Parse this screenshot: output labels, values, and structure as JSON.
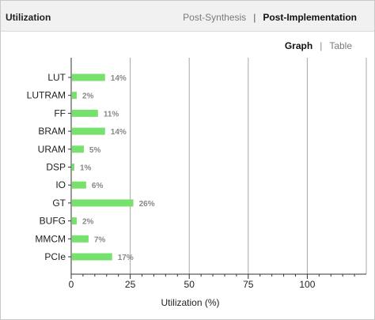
{
  "panel": {
    "title": "Utilization",
    "tabs": [
      {
        "label": "Post-Synthesis",
        "active": false
      },
      {
        "label": "Post-Implementation",
        "active": true
      }
    ],
    "tab_separator": "|",
    "view_tabs": [
      {
        "label": "Graph",
        "active": true
      },
      {
        "label": "Table",
        "active": false
      }
    ],
    "view_separator": "|"
  },
  "colors": {
    "bar": "#77e16d",
    "grid": "#a8a8a8",
    "axis": "#333333"
  },
  "chart_data": {
    "type": "bar",
    "orientation": "horizontal",
    "categories": [
      "LUT",
      "LUTRAM",
      "FF",
      "BRAM",
      "URAM",
      "DSP",
      "IO",
      "GT",
      "BUFG",
      "MMCM",
      "PCIe"
    ],
    "values": [
      14,
      2,
      11,
      14,
      5,
      1,
      6,
      26,
      2,
      7,
      17
    ],
    "value_labels": [
      "14%",
      "2%",
      "11%",
      "14%",
      "5%",
      "1%",
      "6%",
      "26%",
      "2%",
      "7%",
      "17%"
    ],
    "xlabel": "Utilization (%)",
    "xlim": [
      0,
      125
    ],
    "xticks": [
      0,
      25,
      50,
      75,
      100
    ],
    "grid": true
  }
}
